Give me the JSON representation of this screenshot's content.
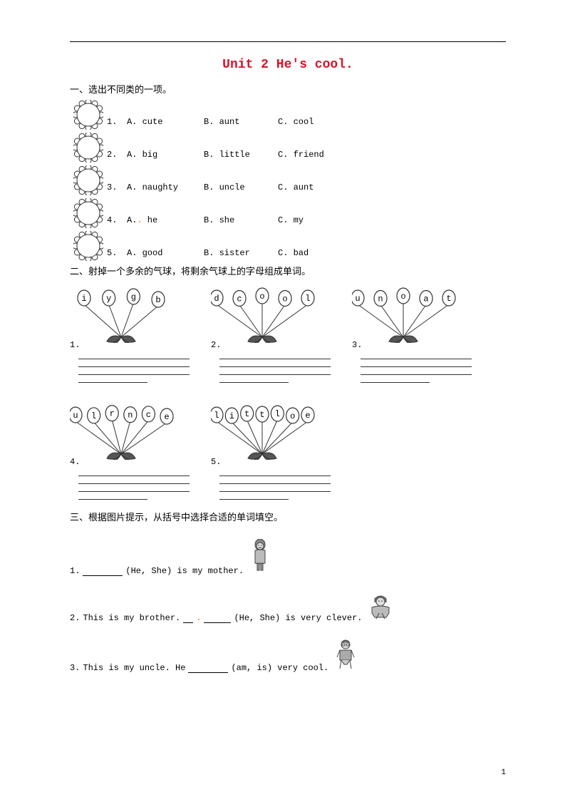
{
  "colors": {
    "title": "#d8132c",
    "orange_dot": "#dd6a00",
    "line": "#000000",
    "balloon_stroke": "#333333"
  },
  "title": "Unit 2  He's cool.",
  "page_number": "1",
  "part1": {
    "heading": "一、选出不同类的一项。",
    "rows": [
      {
        "num": "1.",
        "a": "A. cute",
        "b": "B. aunt",
        "c": "C. cool"
      },
      {
        "num": "2.",
        "a": "A. big",
        "b": "B. little",
        "c": "C. friend"
      },
      {
        "num": "3.",
        "a": "A. naughty",
        "b": "B. uncle",
        "c": "C. aunt"
      },
      {
        "num": "4.",
        "a_pre": "A.",
        "a_dot": ".",
        "a_post": " he",
        "b": "B. she",
        "c": "C. my"
      },
      {
        "num": "5.",
        "a": "A. good",
        "b": "B. sister",
        "c": "C. bad"
      }
    ]
  },
  "part2": {
    "heading": "二、射掉一个多余的气球，将剩余气球上的字母组成单词。",
    "items": [
      {
        "num": "1.",
        "letters": [
          "i",
          "y",
          "g",
          "b"
        ]
      },
      {
        "num": "2.",
        "letters": [
          "d",
          "c",
          "o",
          "o",
          "l"
        ]
      },
      {
        "num": "3.",
        "letters": [
          "u",
          "n",
          "o",
          "a",
          "t"
        ]
      },
      {
        "num": "4.",
        "letters": [
          "u",
          "l",
          "r",
          "n",
          "c",
          "e"
        ]
      },
      {
        "num": "5.",
        "letters": [
          "l",
          "i",
          "t",
          "t",
          "l",
          "o",
          "e"
        ]
      }
    ]
  },
  "part3": {
    "heading": "三、根据图片提示，从括号中选择合适的单词填空。",
    "q1": {
      "num": "1. ",
      "tail": " (He, She) is my mother."
    },
    "q2": {
      "num": "2. ",
      "head": "This is my brother.",
      "tail": " (He, She) is very clever."
    },
    "q3": {
      "num": "3. ",
      "head": "This is my uncle. He ",
      "tail": " (am, is) is very cool."
    }
  }
}
